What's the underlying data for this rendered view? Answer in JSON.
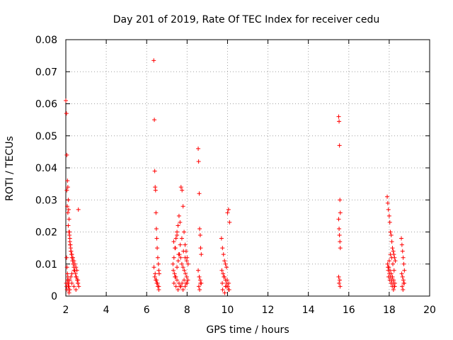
{
  "chart_data": {
    "type": "scatter",
    "title": "Day 201 of 2019, Rate Of TEC Index for receiver cedu",
    "xlabel": "GPS time / hours",
    "ylabel": "ROTI / TECUs",
    "xlim": [
      2,
      20
    ],
    "ylim": [
      0,
      0.08
    ],
    "xticks": [
      2,
      4,
      6,
      8,
      10,
      12,
      14,
      16,
      18,
      20
    ],
    "xtick_labels": [
      "2",
      "4",
      "6",
      "8",
      "10",
      "12",
      "14",
      "16",
      "18",
      "20"
    ],
    "yticks": [
      0,
      0.01,
      0.02,
      0.03,
      0.04,
      0.05,
      0.06,
      0.07,
      0.08
    ],
    "ytick_labels": [
      "0",
      "0.01",
      "0.02",
      "0.03",
      "0.04",
      "0.05",
      "0.06",
      "0.07",
      "0.08"
    ],
    "grid": true,
    "marker": "+",
    "color": "#ff0000",
    "series": [
      {
        "name": "ROTI",
        "x": [
          2.0,
          2.03,
          2.05,
          2.08,
          2.1,
          2.12,
          2.14,
          2.16,
          2.18,
          2.2,
          2.22,
          2.24,
          2.26,
          2.28,
          2.3,
          2.33,
          2.36,
          2.4,
          2.44,
          2.48,
          2.52,
          2.56,
          2.6,
          2.64,
          2.05,
          2.07,
          2.1,
          2.12,
          2.15,
          2.18,
          2.2,
          2.22,
          2.25,
          2.3,
          2.35,
          2.4,
          2.45,
          2.5,
          2.55,
          2.04,
          2.06,
          2.08,
          2.1,
          2.12,
          2.14,
          2.16,
          2.2,
          2.25,
          2.3,
          2.4,
          2.5,
          2.6,
          2.62,
          2.02,
          2.04,
          2.06,
          2.08,
          2.1,
          2.12,
          2.14,
          2.16,
          2.2,
          2.3,
          2.4,
          2.5,
          2.6,
          6.35,
          6.38,
          6.4,
          6.42,
          6.44,
          6.46,
          6.48,
          6.5,
          6.52,
          6.55,
          6.58,
          6.6,
          6.62,
          6.4,
          6.45,
          6.5,
          6.55,
          6.6,
          6.36,
          6.42,
          6.48,
          6.54,
          6.6,
          7.3,
          7.35,
          7.4,
          7.45,
          7.5,
          7.55,
          7.6,
          7.65,
          7.7,
          7.75,
          7.8,
          7.85,
          7.9,
          7.95,
          8.0,
          8.05,
          7.32,
          7.38,
          7.44,
          7.5,
          7.56,
          7.62,
          7.68,
          7.74,
          7.8,
          7.86,
          7.92,
          7.98,
          8.04,
          7.35,
          7.45,
          7.55,
          7.65,
          7.75,
          7.85,
          7.95,
          7.4,
          7.5,
          7.6,
          7.7,
          7.8,
          7.9,
          8.0,
          7.34,
          7.42,
          7.5,
          7.58,
          7.66,
          7.74,
          7.82,
          7.9,
          7.98,
          8.55,
          8.57,
          8.6,
          8.62,
          8.65,
          8.67,
          8.7,
          8.55,
          8.6,
          8.65,
          8.7,
          8.58,
          8.62,
          8.66,
          9.7,
          9.75,
          9.8,
          9.85,
          9.9,
          9.95,
          10.0,
          10.05,
          10.1,
          9.72,
          9.78,
          9.84,
          9.9,
          9.96,
          10.02,
          10.08,
          9.74,
          9.82,
          9.9,
          9.98,
          10.06,
          9.76,
          9.86,
          9.96,
          10.06,
          15.5,
          15.52,
          15.54,
          15.56,
          15.58,
          15.5,
          15.52,
          15.54,
          15.56,
          15.58,
          15.5,
          15.55,
          15.52,
          15.57,
          17.9,
          17.93,
          17.96,
          18.0,
          18.03,
          18.06,
          18.1,
          18.13,
          18.16,
          18.2,
          18.23,
          18.26,
          18.3,
          17.92,
          17.98,
          18.04,
          18.1,
          18.16,
          18.22,
          18.28,
          17.95,
          18.01,
          18.07,
          18.13,
          18.19,
          18.25,
          17.94,
          18.0,
          18.06,
          18.12,
          18.18,
          18.24,
          17.97,
          18.03,
          18.09,
          18.15,
          18.21,
          18.27,
          18.6,
          18.63,
          18.66,
          18.69,
          18.72,
          18.75,
          18.62,
          18.66,
          18.7,
          18.74,
          18.64,
          18.68,
          18.72
        ],
        "y": [
          0.061,
          0.057,
          0.044,
          0.036,
          0.034,
          0.03,
          0.027,
          0.024,
          0.02,
          0.018,
          0.016,
          0.015,
          0.014,
          0.013,
          0.012,
          0.011,
          0.01,
          0.009,
          0.008,
          0.007,
          0.006,
          0.005,
          0.004,
          0.003,
          0.033,
          0.028,
          0.026,
          0.022,
          0.02,
          0.019,
          0.017,
          0.016,
          0.014,
          0.013,
          0.012,
          0.011,
          0.01,
          0.009,
          0.008,
          0.012,
          0.009,
          0.007,
          0.006,
          0.005,
          0.004,
          0.003,
          0.005,
          0.006,
          0.007,
          0.008,
          0.006,
          0.005,
          0.027,
          0.004,
          0.003,
          0.002,
          0.005,
          0.004,
          0.003,
          0.002,
          0.001,
          0.002,
          0.004,
          0.003,
          0.002,
          0.004,
          0.0735,
          0.055,
          0.039,
          0.034,
          0.033,
          0.026,
          0.021,
          0.018,
          0.015,
          0.012,
          0.01,
          0.008,
          0.007,
          0.006,
          0.005,
          0.004,
          0.003,
          0.002,
          0.009,
          0.007,
          0.005,
          0.004,
          0.003,
          0.01,
          0.012,
          0.015,
          0.018,
          0.02,
          0.022,
          0.025,
          0.023,
          0.034,
          0.033,
          0.028,
          0.02,
          0.016,
          0.014,
          0.012,
          0.01,
          0.008,
          0.007,
          0.006,
          0.009,
          0.011,
          0.013,
          0.012,
          0.01,
          0.009,
          0.008,
          0.007,
          0.006,
          0.005,
          0.004,
          0.003,
          0.002,
          0.003,
          0.004,
          0.005,
          0.004,
          0.006,
          0.005,
          0.004,
          0.003,
          0.002,
          0.003,
          0.004,
          0.017,
          0.015,
          0.019,
          0.013,
          0.016,
          0.018,
          0.014,
          0.012,
          0.011,
          0.046,
          0.042,
          0.032,
          0.021,
          0.019,
          0.015,
          0.013,
          0.008,
          0.006,
          0.005,
          0.004,
          0.003,
          0.002,
          0.004,
          0.018,
          0.015,
          0.013,
          0.011,
          0.01,
          0.009,
          0.026,
          0.027,
          0.023,
          0.008,
          0.007,
          0.006,
          0.005,
          0.004,
          0.003,
          0.002,
          0.004,
          0.006,
          0.003,
          0.005,
          0.004,
          0.002,
          0.001,
          0.003,
          0.002,
          0.056,
          0.0545,
          0.047,
          0.03,
          0.026,
          0.024,
          0.021,
          0.019,
          0.017,
          0.015,
          0.006,
          0.005,
          0.004,
          0.003,
          0.031,
          0.029,
          0.027,
          0.025,
          0.023,
          0.02,
          0.019,
          0.017,
          0.015,
          0.014,
          0.013,
          0.012,
          0.011,
          0.01,
          0.009,
          0.008,
          0.007,
          0.006,
          0.005,
          0.004,
          0.008,
          0.007,
          0.006,
          0.005,
          0.004,
          0.003,
          0.009,
          0.011,
          0.013,
          0.012,
          0.01,
          0.008,
          0.006,
          0.005,
          0.004,
          0.003,
          0.002,
          0.003,
          0.018,
          0.016,
          0.014,
          0.012,
          0.01,
          0.008,
          0.007,
          0.006,
          0.005,
          0.004,
          0.003,
          0.002,
          0.004
        ]
      }
    ]
  }
}
